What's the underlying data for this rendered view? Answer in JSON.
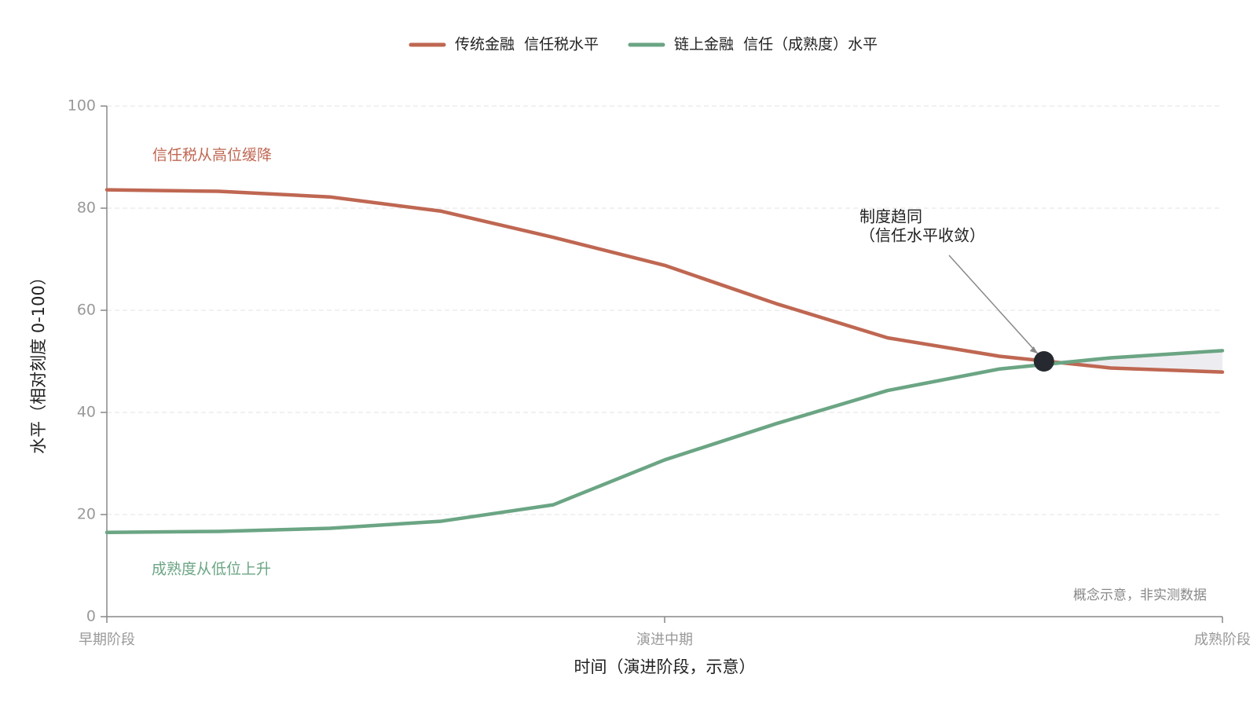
{
  "chart_data": {
    "type": "line",
    "x": [
      0,
      0.1,
      0.2,
      0.3,
      0.4,
      0.5,
      0.6,
      0.7,
      0.8,
      0.9,
      1
    ],
    "series": [
      {
        "name": "传统金融  信任税水平",
        "color": "#bf6752",
        "values": [
          83.6,
          83.3,
          82.2,
          79.4,
          74.3,
          68.8,
          61.3,
          54.6,
          51.0,
          48.7,
          47.9
        ]
      },
      {
        "name": "链上金融  信任（成熟度）水平",
        "color": "#6ba584",
        "values": [
          16.5,
          16.7,
          17.3,
          18.7,
          21.9,
          30.7,
          37.8,
          44.3,
          48.5,
          50.7,
          52.1
        ]
      }
    ],
    "xlim": [
      0,
      1
    ],
    "xticks": [
      {
        "value": 0,
        "label": "早期阶段"
      },
      {
        "value": 0.5,
        "label": "演进中期"
      },
      {
        "value": 1,
        "label": "成熟阶段"
      }
    ],
    "ylim": [
      0,
      100
    ],
    "yticks": [
      0,
      20,
      40,
      60,
      80,
      100
    ],
    "grid": true,
    "legend": "top",
    "x_label": "时间（演进阶段，示意）",
    "y_label": "水平（相对刻度 0-100）",
    "annotation": {
      "lines": [
        "制度趋同",
        "（信任水平收敛）"
      ],
      "x": 0.84,
      "y": 50
    },
    "notes": [
      "信任税从高位缓降",
      "成熟度从低位上升",
      "概念示意，非实测数据"
    ]
  }
}
